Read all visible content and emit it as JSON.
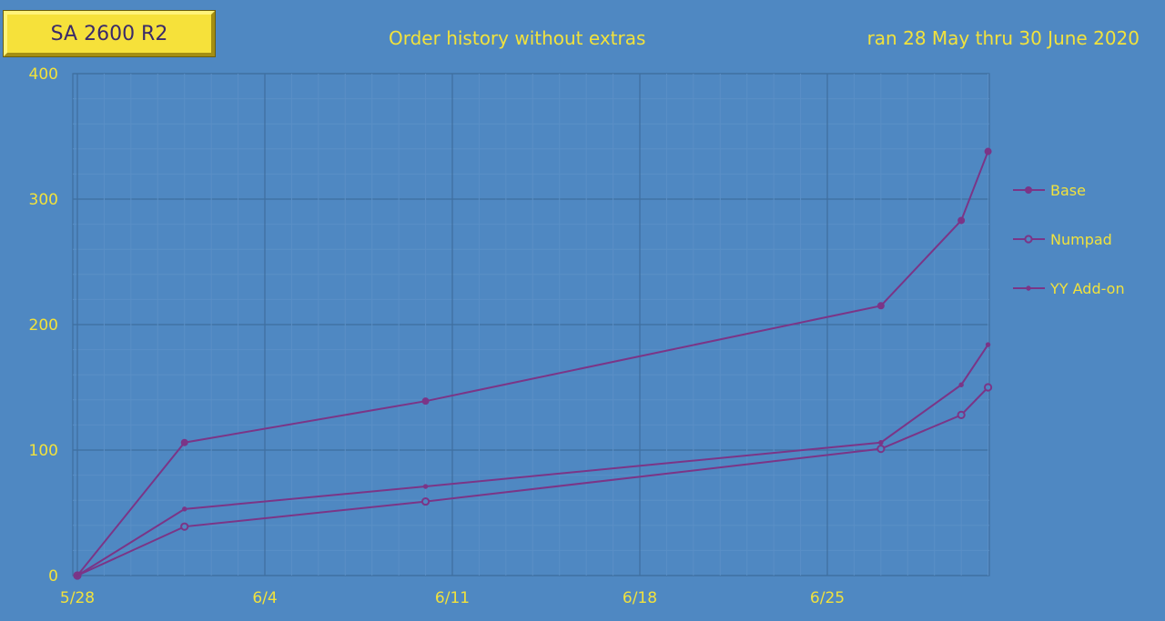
{
  "badge": "SA 2600 R2",
  "chart_data": {
    "type": "line",
    "title": "Order history without extras",
    "subtitle": "ran 28 May thru 30 June 2020",
    "xlabel": "",
    "ylabel": "",
    "x_ticks": [
      {
        "label": "5/28",
        "value": "2020-05-28"
      },
      {
        "label": "6/4",
        "value": "2020-06-04"
      },
      {
        "label": "6/11",
        "value": "2020-06-11"
      },
      {
        "label": "6/18",
        "value": "2020-06-18"
      },
      {
        "label": "6/25",
        "value": "2020-06-25"
      }
    ],
    "xlim": [
      "2020-05-28",
      "2020-06-30"
    ],
    "y_ticks": [
      0,
      100,
      200,
      300,
      400
    ],
    "ylim": [
      0,
      400
    ],
    "grid": true,
    "legend_position": "right",
    "line_color": "#7b3587",
    "text_color": "#f2e23c",
    "background_color": "#4f88c2",
    "series": [
      {
        "name": "Base",
        "marker": "filled-circle",
        "points": [
          {
            "x": "2020-05-28",
            "y": 0
          },
          {
            "x": "2020-06-01",
            "y": 106
          },
          {
            "x": "2020-06-10",
            "y": 139
          },
          {
            "x": "2020-06-27",
            "y": 215
          },
          {
            "x": "2020-06-30",
            "y": 283
          },
          {
            "x": "2020-07-01",
            "y": 338
          }
        ]
      },
      {
        "name": "Numpad",
        "marker": "open-circle",
        "points": [
          {
            "x": "2020-05-28",
            "y": 0
          },
          {
            "x": "2020-06-01",
            "y": 39
          },
          {
            "x": "2020-06-10",
            "y": 59
          },
          {
            "x": "2020-06-27",
            "y": 101
          },
          {
            "x": "2020-06-30",
            "y": 128
          },
          {
            "x": "2020-07-01",
            "y": 150
          }
        ]
      },
      {
        "name": "YY Add-on",
        "marker": "small-dot",
        "points": [
          {
            "x": "2020-05-28",
            "y": 0
          },
          {
            "x": "2020-06-01",
            "y": 53
          },
          {
            "x": "2020-06-10",
            "y": 71
          },
          {
            "x": "2020-06-27",
            "y": 106
          },
          {
            "x": "2020-06-30",
            "y": 152
          },
          {
            "x": "2020-07-01",
            "y": 184
          }
        ]
      }
    ]
  }
}
